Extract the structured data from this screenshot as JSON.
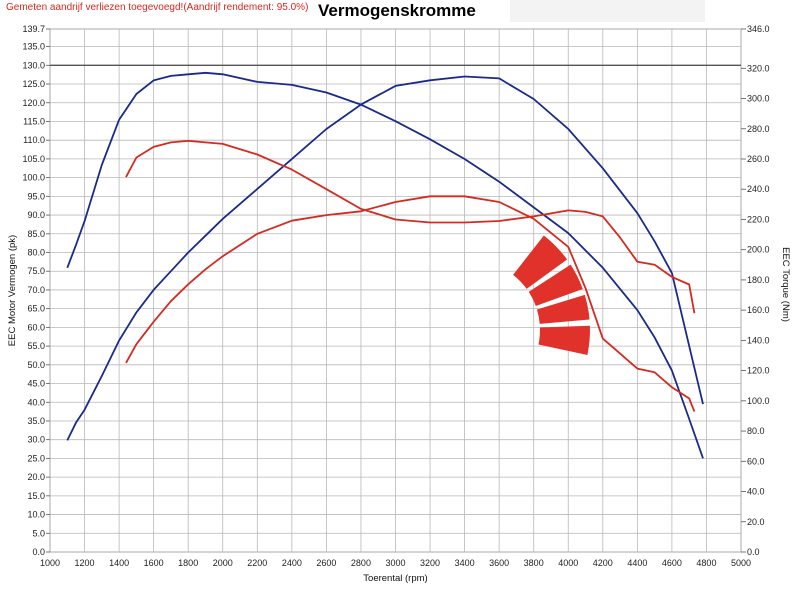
{
  "note": "Gemeten aandrijf verliezen toegevoegd!(Aandrijf rendement: 95.0%)",
  "colors": {
    "blue": "#1b2a8a",
    "red": "#d42a20",
    "logo_red": "#e0322a",
    "grid": "#b8b8b8",
    "ref_line": "#555555"
  },
  "chart_data": {
    "type": "line",
    "title": "Vermogenskromme",
    "xlabel": "Toerental (rpm)",
    "ylabel_left": "EEC Motor Vermogen (pk)",
    "ylabel_right": "EEC Torque (Nm)",
    "xlim": [
      1000,
      5000
    ],
    "ylim_left": [
      0,
      139.7
    ],
    "ylim_right": [
      0,
      346
    ],
    "grid": true,
    "reference_line_left": 130,
    "x_ticks": [
      1000,
      1200,
      1400,
      1600,
      1800,
      2000,
      2200,
      2400,
      2600,
      2800,
      3000,
      3200,
      3400,
      3600,
      3800,
      4000,
      4200,
      4400,
      4600,
      4800,
      5000
    ],
    "y_ticks_left": [
      "139.7",
      "135.0",
      "130.0",
      "125.0",
      "120.0",
      "115.0",
      "110.0",
      "105.0",
      "100.0",
      "95.0",
      "90.0",
      "85.0",
      "80.0",
      "75.0",
      "70.0",
      "65.0",
      "60.0",
      "55.0",
      "50.0",
      "45.0",
      "40.0",
      "35.0",
      "30.0",
      "25.0",
      "20.0",
      "15.0",
      "10.0",
      "5.0",
      "0.0"
    ],
    "y_ticks_right": [
      "346.0",
      "320.0",
      "300.0",
      "280.0",
      "260.0",
      "240.0",
      "220.0",
      "200.0",
      "180.0",
      "160.0",
      "140.0",
      "120.0",
      "100.0",
      "80.0",
      "60.0",
      "40.0",
      "20.0",
      "0.0"
    ],
    "series": [
      {
        "color": "#1b2a8a",
        "axis": "left",
        "x": [
          1100,
          1150,
          1200,
          1300,
          1400,
          1500,
          1600,
          1700,
          1800,
          1900,
          2000,
          2200,
          2400,
          2600,
          2800,
          3000,
          3200,
          3400,
          3600,
          3800,
          4000,
          4200,
          4400,
          4500,
          4600,
          4700,
          4780
        ],
        "y": [
          29.8,
          34.5,
          38.0,
          47.0,
          56.5,
          64.0,
          70.0,
          75.0,
          80.0,
          84.5,
          89.0,
          97.0,
          105.0,
          113.0,
          119.5,
          124.5,
          126.0,
          127.0,
          126.5,
          121.0,
          113.0,
          102.5,
          90.5,
          83.0,
          74.5,
          55.0,
          39.5
        ]
      },
      {
        "color": "#1b2a8a",
        "axis": "right",
        "x": [
          1100,
          1150,
          1200,
          1300,
          1400,
          1500,
          1600,
          1700,
          1800,
          1900,
          2000,
          2200,
          2400,
          2600,
          2800,
          3000,
          3200,
          3400,
          3600,
          3800,
          4000,
          4200,
          4400,
          4500,
          4600,
          4700,
          4780
        ],
        "y": [
          188,
          203,
          219,
          256,
          286,
          303,
          312,
          315,
          316,
          317,
          316,
          311,
          309,
          304,
          296,
          285,
          273,
          260,
          245,
          228,
          211,
          188,
          160,
          142,
          120,
          88,
          62
        ]
      },
      {
        "color": "#d42a20",
        "axis": "left",
        "x": [
          1440,
          1500,
          1600,
          1700,
          1800,
          1900,
          2000,
          2200,
          2400,
          2600,
          2800,
          3000,
          3200,
          3400,
          3600,
          3800,
          4000,
          4100,
          4200,
          4300,
          4400,
          4500,
          4600,
          4700,
          4730
        ],
        "y": [
          50.5,
          55.5,
          61.5,
          67.0,
          71.5,
          75.5,
          79.0,
          85.0,
          88.5,
          90.0,
          91.0,
          93.5,
          95.0,
          95.0,
          93.5,
          89.0,
          81.5,
          70.5,
          57.0,
          53.0,
          49.0,
          48.0,
          44.0,
          41.0,
          37.5
        ]
      },
      {
        "color": "#d42a20",
        "axis": "right",
        "x": [
          1440,
          1500,
          1600,
          1700,
          1800,
          1900,
          2000,
          2200,
          2400,
          2600,
          2800,
          3000,
          3200,
          3400,
          3600,
          3800,
          4000,
          4100,
          4200,
          4300,
          4400,
          4500,
          4600,
          4700,
          4730
        ],
        "y": [
          248,
          261,
          268,
          271,
          272,
          271,
          270,
          263,
          253,
          240,
          227,
          220,
          218,
          218,
          219,
          222,
          226,
          225,
          222,
          208,
          192,
          190,
          182,
          177,
          158
        ]
      }
    ]
  }
}
